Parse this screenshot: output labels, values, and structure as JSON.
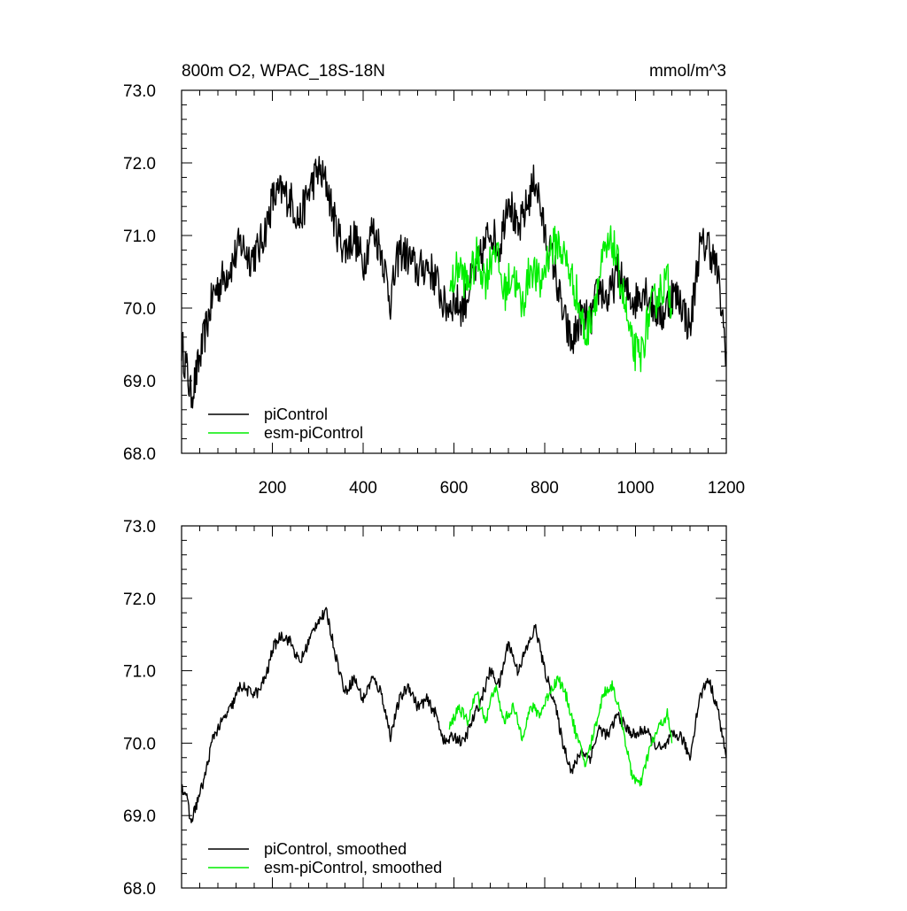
{
  "chart_data": [
    {
      "type": "line",
      "title": "800m O2, WPAC_18S-18N",
      "unit_label": "mmol/m^3",
      "xlim": [
        0,
        1200
      ],
      "ylim": [
        68.0,
        73.0
      ],
      "x_ticks": [
        200,
        400,
        600,
        800,
        1000,
        1200
      ],
      "y_ticks": [
        "68.0",
        "69.0",
        "70.0",
        "71.0",
        "72.0",
        "73.0"
      ],
      "legend_position": "bottom-left",
      "series": [
        {
          "name": "piControl",
          "color": "#000000",
          "x": [
            0,
            10,
            20,
            30,
            50,
            70,
            90,
            110,
            130,
            150,
            170,
            190,
            200,
            220,
            240,
            260,
            280,
            300,
            320,
            340,
            360,
            380,
            400,
            420,
            440,
            460,
            480,
            500,
            520,
            540,
            560,
            580,
            600,
            620,
            640,
            660,
            680,
            700,
            720,
            740,
            760,
            780,
            800,
            820,
            840,
            860,
            880,
            900,
            920,
            940,
            960,
            980,
            1000,
            1020,
            1040,
            1060,
            1080,
            1100,
            1120,
            1140,
            1160,
            1180,
            1200
          ],
          "values": [
            69.5,
            69.2,
            68.8,
            69.0,
            69.6,
            70.2,
            70.4,
            70.6,
            70.9,
            70.7,
            70.8,
            71.2,
            71.5,
            71.6,
            71.5,
            71.2,
            71.6,
            71.9,
            71.7,
            71.1,
            70.8,
            71.0,
            70.6,
            71.1,
            70.8,
            70.1,
            70.8,
            70.7,
            70.5,
            70.6,
            70.4,
            70.0,
            70.1,
            70.0,
            70.4,
            70.7,
            71.1,
            70.8,
            71.6,
            71.0,
            71.4,
            71.8,
            71.0,
            70.6,
            69.9,
            69.5,
            69.9,
            69.8,
            70.3,
            70.1,
            70.5,
            70.2,
            70.1,
            70.3,
            70.0,
            69.9,
            70.2,
            70.1,
            69.7,
            70.8,
            70.9,
            70.5,
            69.4
          ]
        },
        {
          "name": "esm-piControl",
          "color": "#00ee00",
          "x": [
            590,
            610,
            630,
            650,
            670,
            690,
            710,
            730,
            750,
            770,
            790,
            810,
            830,
            850,
            870,
            890,
            910,
            930,
            950,
            970,
            990,
            1010,
            1030,
            1050,
            1070,
            1080
          ],
          "values": [
            70.2,
            70.6,
            70.3,
            70.7,
            70.4,
            70.9,
            70.2,
            70.5,
            70.0,
            70.6,
            70.3,
            70.8,
            70.9,
            70.6,
            70.2,
            69.6,
            70.1,
            70.7,
            70.9,
            70.3,
            69.5,
            69.3,
            69.9,
            70.2,
            70.4,
            70.0
          ]
        }
      ]
    },
    {
      "type": "line",
      "title": "",
      "xlim": [
        0,
        1200
      ],
      "ylim": [
        68.0,
        73.0
      ],
      "y_ticks": [
        "68.0",
        "69.0",
        "70.0",
        "71.0",
        "72.0",
        "73.0"
      ],
      "legend_position": "bottom-left",
      "series": [
        {
          "name": "piControl, smoothed",
          "color": "#000000",
          "x": [
            0,
            10,
            20,
            30,
            50,
            70,
            90,
            110,
            130,
            150,
            170,
            190,
            200,
            220,
            240,
            260,
            280,
            300,
            320,
            340,
            360,
            380,
            400,
            420,
            440,
            460,
            480,
            500,
            520,
            540,
            560,
            580,
            600,
            620,
            640,
            660,
            680,
            700,
            720,
            740,
            760,
            780,
            800,
            820,
            840,
            860,
            880,
            900,
            920,
            940,
            960,
            980,
            1000,
            1020,
            1040,
            1060,
            1080,
            1100,
            1120,
            1140,
            1160,
            1180,
            1200
          ],
          "values": [
            69.4,
            69.3,
            68.9,
            69.1,
            69.5,
            70.1,
            70.3,
            70.5,
            70.8,
            70.7,
            70.7,
            71.0,
            71.3,
            71.5,
            71.4,
            71.1,
            71.4,
            71.7,
            71.8,
            71.2,
            70.7,
            70.9,
            70.6,
            70.9,
            70.7,
            70.1,
            70.6,
            70.8,
            70.5,
            70.6,
            70.4,
            70.0,
            70.1,
            70.0,
            70.3,
            70.6,
            71.0,
            70.8,
            71.4,
            71.0,
            71.3,
            71.6,
            71.0,
            70.6,
            70.0,
            69.6,
            69.9,
            69.8,
            70.2,
            70.1,
            70.4,
            70.2,
            70.1,
            70.2,
            70.0,
            69.9,
            70.1,
            70.1,
            69.8,
            70.6,
            70.9,
            70.5,
            69.8
          ]
        },
        {
          "name": "esm-piControl, smoothed",
          "color": "#00ee00",
          "x": [
            590,
            610,
            630,
            650,
            670,
            690,
            710,
            730,
            750,
            770,
            790,
            810,
            830,
            850,
            870,
            890,
            910,
            930,
            950,
            970,
            990,
            1010,
            1030,
            1050,
            1070,
            1080
          ],
          "values": [
            70.2,
            70.5,
            70.3,
            70.7,
            70.3,
            70.8,
            70.3,
            70.5,
            70.1,
            70.5,
            70.4,
            70.7,
            70.9,
            70.6,
            70.1,
            69.7,
            70.2,
            70.7,
            70.8,
            70.3,
            69.6,
            69.4,
            69.9,
            70.2,
            70.4,
            70.0
          ]
        }
      ]
    }
  ]
}
